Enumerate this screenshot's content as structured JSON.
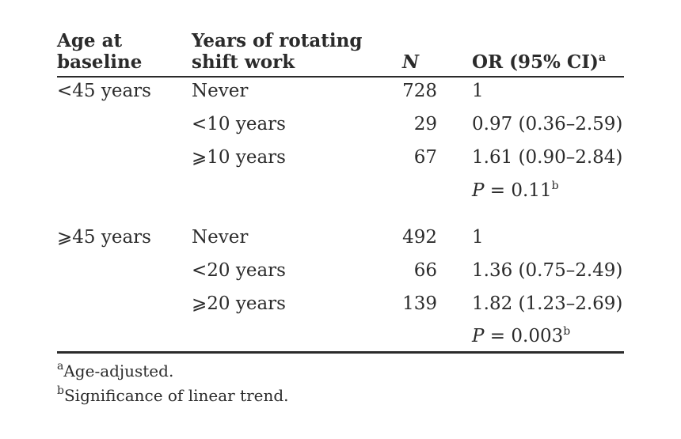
{
  "headers": {
    "age": [
      "Age at",
      "baseline"
    ],
    "years": [
      "Years of rotating",
      "shift work"
    ],
    "n": "N",
    "or": "OR (95% CI)",
    "or_sup": "a"
  },
  "groups": [
    {
      "age": "<45 years",
      "rows": [
        {
          "years": "Never",
          "n": "728",
          "or": "1"
        },
        {
          "years": "<10 years",
          "n": "29",
          "or": "0.97 (0.36–2.59)"
        },
        {
          "years": "⩾10 years",
          "n": "67",
          "or": "1.61 (0.90–2.84)"
        }
      ],
      "p_label": "P",
      "p_value": " = 0.11",
      "p_sup": "b"
    },
    {
      "age": "⩾45 years",
      "rows": [
        {
          "years": "Never",
          "n": "492",
          "or": "1"
        },
        {
          "years": "<20 years",
          "n": "66",
          "or": "1.36 (0.75–2.49)"
        },
        {
          "years": "⩾20 years",
          "n": "139",
          "or": "1.82 (1.23–2.69)"
        }
      ],
      "p_label": "P",
      "p_value": " = 0.003",
      "p_sup": "b"
    }
  ],
  "footnotes": [
    {
      "mark": "a",
      "text": "Age-adjusted."
    },
    {
      "mark": "b",
      "text": "Significance of linear trend."
    }
  ]
}
